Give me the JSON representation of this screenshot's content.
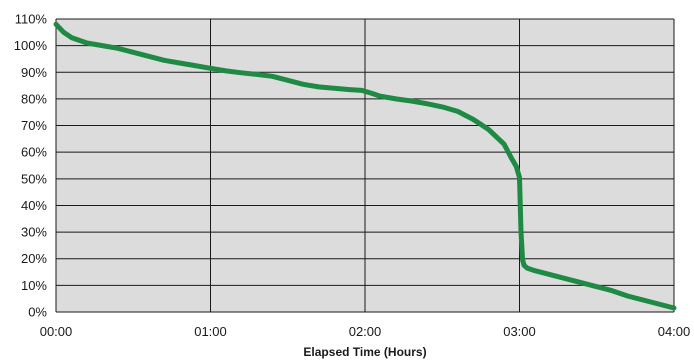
{
  "chart_data": {
    "type": "line",
    "title": "",
    "xlabel": "Elapsed Time (Hours)",
    "ylabel": "",
    "xlim": [
      0,
      4
    ],
    "ylim": [
      0,
      110
    ],
    "x_tick_values": [
      0,
      1,
      2,
      3,
      4
    ],
    "x_tick_labels": [
      "00:00",
      "01:00",
      "02:00",
      "03:00",
      "04:00"
    ],
    "y_tick_values": [
      0,
      10,
      20,
      30,
      40,
      50,
      60,
      70,
      80,
      90,
      100,
      110
    ],
    "y_tick_labels": [
      "0%",
      "10%",
      "20%",
      "30%",
      "40%",
      "50%",
      "60%",
      "70%",
      "80%",
      "90%",
      "100%",
      "110%"
    ],
    "grid": true,
    "legend": "none",
    "colors": {
      "plot_background": "#dcdcdc",
      "line": "#1e8a43",
      "grid": "#1a1a1a"
    },
    "series": [
      {
        "x": [
          0,
          0.05,
          0.1,
          0.2,
          0.3,
          0.4,
          0.5,
          0.6,
          0.7,
          0.8,
          0.9,
          1.0,
          1.1,
          1.2,
          1.3,
          1.4,
          1.5,
          1.6,
          1.7,
          1.8,
          1.9,
          1.98,
          2.05,
          2.1,
          2.2,
          2.3,
          2.4,
          2.5,
          2.6,
          2.7,
          2.8,
          2.9,
          2.95,
          2.98,
          3.0,
          3.01,
          3.02,
          3.03,
          3.05,
          3.1,
          3.2,
          3.3,
          3.4,
          3.5,
          3.6,
          3.7,
          3.8,
          3.9,
          4.0
        ],
        "y": [
          108,
          105,
          103,
          101,
          100,
          99,
          97.5,
          96,
          94.5,
          93.5,
          92.5,
          91.5,
          90.5,
          89.8,
          89.2,
          88.5,
          87,
          85.5,
          84.5,
          84,
          83.5,
          83.2,
          82,
          81,
          80,
          79.2,
          78.2,
          77,
          75.3,
          72.3,
          68.5,
          63,
          57.5,
          54.5,
          50.5,
          30,
          19.5,
          17.5,
          16.5,
          15.5,
          14,
          12.5,
          11,
          9.5,
          8,
          6,
          4.5,
          3,
          1.5
        ]
      }
    ]
  }
}
